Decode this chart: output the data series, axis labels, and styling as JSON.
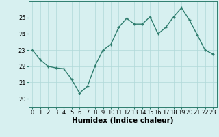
{
  "x": [
    0,
    1,
    2,
    3,
    4,
    5,
    6,
    7,
    8,
    9,
    10,
    11,
    12,
    13,
    14,
    15,
    16,
    17,
    18,
    19,
    20,
    21,
    22,
    23
  ],
  "y": [
    23.0,
    22.4,
    22.0,
    21.9,
    21.85,
    21.2,
    20.35,
    20.75,
    22.05,
    23.0,
    23.35,
    24.4,
    24.95,
    24.6,
    24.6,
    25.05,
    24.0,
    24.4,
    25.05,
    25.6,
    24.85,
    23.95,
    23.0,
    22.75
  ],
  "line_color": "#2e7d6e",
  "marker": "+",
  "marker_size": 3,
  "bg_color": "#d7f0f0",
  "grid_color": "#b0d8d8",
  "xlabel": "Humidex (Indice chaleur)",
  "ylim": [
    19.5,
    26.0
  ],
  "xlim": [
    -0.5,
    23.5
  ],
  "yticks": [
    20,
    21,
    22,
    23,
    24,
    25
  ],
  "xticks": [
    0,
    1,
    2,
    3,
    4,
    5,
    6,
    7,
    8,
    9,
    10,
    11,
    12,
    13,
    14,
    15,
    16,
    17,
    18,
    19,
    20,
    21,
    22,
    23
  ],
  "tick_fontsize": 6.0,
  "xlabel_fontsize": 7.5,
  "line_width": 1.0
}
